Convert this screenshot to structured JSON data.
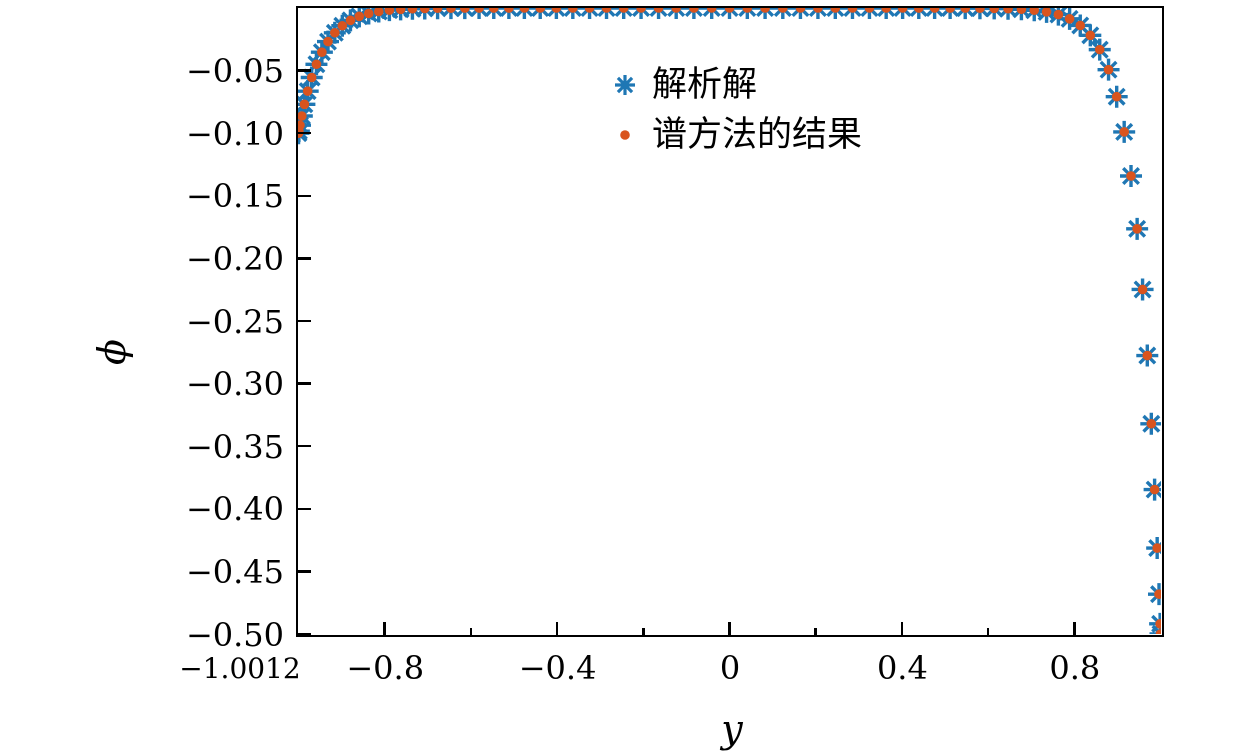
{
  "figure": {
    "background_color": "#ffffff",
    "frame_color": "#000000",
    "x_axis": {
      "label": "y",
      "corner_label": "−1.0012",
      "range": [
        -1.0012,
        1.0012
      ],
      "ticks": [
        {
          "value": -0.8,
          "label": "−0.8"
        },
        {
          "value": -0.4,
          "label": "−0.4"
        },
        {
          "value": 0.0,
          "label": "0"
        },
        {
          "value": 0.4,
          "label": "0.4"
        },
        {
          "value": 0.8,
          "label": "0.8"
        }
      ],
      "minor_ticks": [
        -0.6,
        -0.2,
        0.2,
        0.6
      ]
    },
    "y_axis": {
      "label": "ϕ",
      "range": [
        -0.5,
        0.0
      ],
      "ticks": [
        {
          "value": -0.05,
          "label": "−0.05"
        },
        {
          "value": -0.1,
          "label": "−0.10"
        },
        {
          "value": -0.15,
          "label": "−0.15"
        },
        {
          "value": -0.2,
          "label": "−0.20"
        },
        {
          "value": -0.25,
          "label": "−0.25"
        },
        {
          "value": -0.3,
          "label": "−0.30"
        },
        {
          "value": -0.35,
          "label": "−0.35"
        },
        {
          "value": -0.4,
          "label": "−0.40"
        },
        {
          "value": -0.45,
          "label": "−0.45"
        },
        {
          "value": -0.5,
          "label": "−0.50"
        }
      ]
    },
    "legend": {
      "items": [
        {
          "label": "解析解",
          "marker": "asterisk-8",
          "color": "#1f77b4"
        },
        {
          "label": "谱方法的结果",
          "marker": "filled-circle",
          "color": "#d9541e"
        }
      ]
    }
  },
  "chart_data": {
    "type": "scatter",
    "title": "",
    "xlabel": "y",
    "ylabel": "ϕ",
    "xlim": [
      -1.0012,
      1.0012
    ],
    "ylim": [
      -0.5,
      0.0
    ],
    "grid": false,
    "legend_position": "upper-center inside",
    "x_points_description": "Chebyshev–Gauss–Lobatto nodes, N=76 (77 points), both series coincide",
    "x": [
      1,
      0.99915,
      0.99658,
      0.99232,
      0.98636,
      0.97872,
      0.9694,
      0.95843,
      0.94582,
      0.9316,
      0.91578,
      0.8984,
      0.8795,
      0.85906,
      0.83717,
      0.81385,
      0.78914,
      0.76308,
      0.73571,
      0.70711,
      0.67728,
      0.6463,
      0.61421,
      0.58107,
      0.54695,
      0.51188,
      0.47594,
      0.4392,
      0.4017,
      0.36352,
      0.3247,
      0.28534,
      0.24549,
      0.20521,
      0.1646,
      0.12369,
      0.08259,
      0.04133,
      0,
      -0.04133,
      -0.08259,
      -0.12369,
      -0.1646,
      -0.20521,
      -0.24549,
      -0.28534,
      -0.3247,
      -0.36352,
      -0.4017,
      -0.4392,
      -0.47594,
      -0.51188,
      -0.54695,
      -0.58107,
      -0.61421,
      -0.6463,
      -0.67728,
      -0.70711,
      -0.73571,
      -0.76308,
      -0.78914,
      -0.81385,
      -0.83717,
      -0.85906,
      -0.8795,
      -0.8984,
      -0.91578,
      -0.9316,
      -0.94582,
      -0.95843,
      -0.9694,
      -0.97872,
      -0.98636,
      -0.99232,
      -0.99658,
      -0.99915,
      -1
    ],
    "series": [
      {
        "name": "解析解",
        "marker": "asterisk-8",
        "color": "#1f77b4",
        "values": [
          -0.5,
          -0.49189,
          -0.46817,
          -0.43135,
          -0.38464,
          -0.33208,
          -0.27758,
          -0.22481,
          -0.17638,
          -0.13419,
          -0.09896,
          -0.07086,
          -0.04926,
          -0.03325,
          -0.02184,
          -0.01395,
          -0.00866,
          -0.00525,
          -0.0031,
          -0.00179,
          -0.00101,
          -0.00055,
          -0.0003,
          -0.00016,
          -8e-05,
          -4e-05,
          -2e-05,
          -1e-05,
          0,
          0,
          0,
          0,
          0,
          0,
          0,
          0,
          0,
          0,
          0,
          0,
          0,
          0,
          0,
          0,
          0,
          0,
          0,
          0,
          0,
          0,
          0,
          -1e-05,
          -2e-05,
          -3e-05,
          -6e-05,
          -0.00011,
          -0.0002,
          -0.00036,
          -0.00062,
          -0.00105,
          -0.00173,
          -0.00279,
          -0.00437,
          -0.00665,
          -0.00985,
          -0.01417,
          -0.01979,
          -0.02684,
          -0.03528,
          -0.04496,
          -0.05552,
          -0.06642,
          -0.07693,
          -0.08627,
          -0.09363,
          -0.09838,
          -0.1
        ]
      },
      {
        "name": "谱方法的结果",
        "marker": "filled-circle",
        "color": "#d9541e",
        "values": [
          -0.5,
          -0.49189,
          -0.46817,
          -0.43135,
          -0.38464,
          -0.33208,
          -0.27758,
          -0.22481,
          -0.17638,
          -0.13419,
          -0.09896,
          -0.07086,
          -0.04926,
          -0.03325,
          -0.02184,
          -0.01395,
          -0.00866,
          -0.00525,
          -0.0031,
          -0.00179,
          -0.00101,
          -0.00055,
          -0.0003,
          -0.00016,
          -8e-05,
          -4e-05,
          -2e-05,
          -1e-05,
          0,
          0,
          0,
          0,
          0,
          0,
          0,
          0,
          0,
          0,
          0,
          0,
          0,
          0,
          0,
          0,
          0,
          0,
          0,
          0,
          0,
          0,
          0,
          -1e-05,
          -2e-05,
          -3e-05,
          -6e-05,
          -0.00011,
          -0.0002,
          -0.00036,
          -0.00062,
          -0.00105,
          -0.00173,
          -0.00279,
          -0.00437,
          -0.00665,
          -0.00985,
          -0.01417,
          -0.01979,
          -0.02684,
          -0.03528,
          -0.04496,
          -0.05552,
          -0.06642,
          -0.07693,
          -0.08627,
          -0.09363,
          -0.09838,
          -0.1
        ]
      }
    ]
  }
}
